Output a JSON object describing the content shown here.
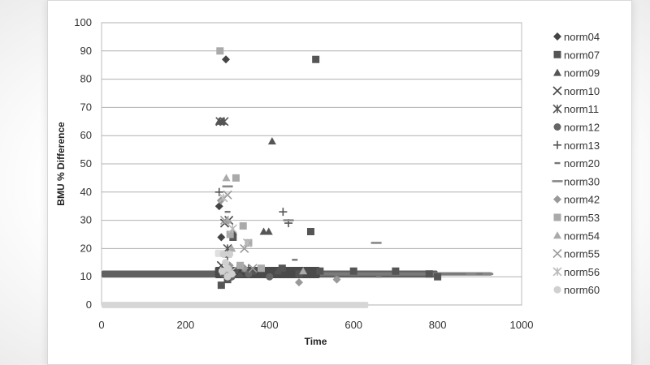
{
  "chart_data": {
    "type": "scatter",
    "title": "",
    "xlabel": "Time",
    "ylabel": "BMU % Difference",
    "xlim": [
      0,
      1000
    ],
    "ylim": [
      0,
      100
    ],
    "xticks": [
      "0",
      "200",
      "400",
      "600",
      "800",
      "1000"
    ],
    "yticks": [
      "0",
      "10",
      "20",
      "30",
      "40",
      "50",
      "60",
      "70",
      "80",
      "90",
      "100"
    ],
    "grid": "horizontal",
    "legend": "right",
    "series": [
      {
        "name": "norm04",
        "marker": "diamond",
        "color": "#444444",
        "points": [
          [
            280,
            35
          ],
          [
            285,
            24
          ],
          [
            296,
            87
          ],
          [
            300,
            12
          ],
          [
            310,
            10
          ]
        ]
      },
      {
        "name": "norm07",
        "marker": "square",
        "color": "#555555",
        "points": [
          [
            510,
            87
          ],
          [
            498,
            26
          ],
          [
            313,
            24
          ],
          [
            285,
            7
          ],
          [
            300,
            9
          ],
          [
            330,
            13
          ],
          [
            360,
            12
          ],
          [
            430,
            13
          ],
          [
            470,
            11
          ],
          [
            520,
            12
          ],
          [
            600,
            12
          ],
          [
            700,
            12
          ],
          [
            800,
            10
          ],
          [
            780,
            11
          ]
        ]
      },
      {
        "name": "norm09",
        "marker": "triangle",
        "color": "#555555",
        "points": [
          [
            406,
            58
          ],
          [
            280,
            65
          ],
          [
            288,
            65
          ],
          [
            313,
            26
          ],
          [
            386,
            26
          ],
          [
            398,
            26
          ],
          [
            330,
            11
          ],
          [
            420,
            12
          ]
        ]
      },
      {
        "name": "norm10",
        "marker": "x",
        "color": "#444444",
        "points": [
          [
            293,
            29
          ],
          [
            303,
            30
          ],
          [
            285,
            14
          ],
          [
            330,
            12
          ]
        ]
      },
      {
        "name": "norm11",
        "marker": "asterisk",
        "color": "#555555",
        "points": [
          [
            282,
            65
          ],
          [
            292,
            65
          ],
          [
            300,
            20
          ],
          [
            320,
            12
          ]
        ]
      },
      {
        "name": "norm12",
        "marker": "circle",
        "color": "#666666",
        "points": [
          [
            290,
            11
          ],
          [
            310,
            10
          ],
          [
            350,
            11
          ],
          [
            400,
            10
          ]
        ]
      },
      {
        "name": "norm13",
        "marker": "plus",
        "color": "#555555",
        "points": [
          [
            280,
            40
          ],
          [
            432,
            33
          ],
          [
            445,
            29
          ],
          [
            300,
            17
          ],
          [
            350,
            13
          ]
        ]
      },
      {
        "name": "norm20",
        "marker": "dash",
        "color": "#777777",
        "points": [
          [
            300,
            33
          ],
          [
            460,
            16
          ],
          [
            340,
            12
          ],
          [
            560,
            10
          ],
          [
            660,
            10
          ]
        ]
      },
      {
        "name": "norm30",
        "marker": "hline",
        "color": "#888888",
        "points": [
          [
            654,
            22
          ],
          [
            445,
            30
          ],
          [
            300,
            42
          ],
          [
            880,
            11
          ],
          [
            920,
            11
          ]
        ]
      },
      {
        "name": "norm42",
        "marker": "diamond",
        "color": "#999999",
        "points": [
          [
            284,
            37
          ],
          [
            305,
            14
          ],
          [
            340,
            13
          ],
          [
            470,
            8
          ],
          [
            560,
            9
          ]
        ]
      },
      {
        "name": "norm53",
        "marker": "square",
        "color": "#aaaaaa",
        "points": [
          [
            282,
            90
          ],
          [
            320,
            45
          ],
          [
            337,
            28
          ],
          [
            306,
            25
          ],
          [
            330,
            14
          ],
          [
            350,
            22
          ],
          [
            380,
            13
          ]
        ]
      },
      {
        "name": "norm54",
        "marker": "triangle",
        "color": "#aaaaaa",
        "points": [
          [
            297,
            45
          ],
          [
            300,
            30
          ],
          [
            310,
            20
          ],
          [
            300,
            11
          ],
          [
            480,
            12
          ]
        ]
      },
      {
        "name": "norm55",
        "marker": "x",
        "color": "#999999",
        "points": [
          [
            300,
            39
          ],
          [
            293,
            30
          ],
          [
            340,
            20
          ],
          [
            360,
            13
          ]
        ]
      },
      {
        "name": "norm56",
        "marker": "asterisk",
        "color": "#bbbbbb",
        "points": [
          [
            290,
            38
          ],
          [
            312,
            27
          ],
          [
            347,
            22
          ],
          [
            292,
            12
          ],
          [
            310,
            12
          ]
        ]
      },
      {
        "name": "norm60",
        "marker": "circle",
        "color": "#d0d0d0",
        "points": [
          [
            290,
            18
          ],
          [
            305,
            18
          ],
          [
            295,
            15
          ],
          [
            300,
            13
          ],
          [
            287,
            12
          ],
          [
            310,
            11
          ],
          [
            300,
            10
          ]
        ]
      }
    ],
    "bands": [
      {
        "color": "#606060",
        "x0": 0,
        "x1": 800,
        "y0": 9.7,
        "y1": 12.2
      },
      {
        "color": "#7a7a7a",
        "x0": 300,
        "x1": 930,
        "y0": 10.4,
        "y1": 11.6
      },
      {
        "color": "#d6d6d6",
        "x0": 0,
        "x1": 635,
        "y0": -1.1,
        "y1": 1.1
      },
      {
        "color": "#e0e0e0",
        "x0": 270,
        "x1": 300,
        "y0": 17,
        "y1": 19.6
      },
      {
        "color": "#4a4a4a",
        "x0": 270,
        "x1": 520,
        "y0": 9.5,
        "y1": 13.5
      }
    ]
  }
}
